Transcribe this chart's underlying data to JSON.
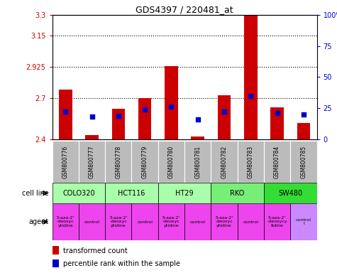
{
  "title": "GDS4397 / 220481_at",
  "samples": [
    "GSM800776",
    "GSM800777",
    "GSM800778",
    "GSM800779",
    "GSM800780",
    "GSM800781",
    "GSM800782",
    "GSM800783",
    "GSM800784",
    "GSM800785"
  ],
  "red_values": [
    2.76,
    2.43,
    2.62,
    2.7,
    2.93,
    2.42,
    2.72,
    3.3,
    2.63,
    2.52
  ],
  "blue_pct": [
    22,
    18,
    19,
    24,
    26,
    16,
    22,
    35,
    21,
    20
  ],
  "ylim_left": [
    2.4,
    3.3
  ],
  "ylim_right": [
    0,
    100
  ],
  "yticks_left": [
    2.4,
    2.7,
    2.925,
    3.15,
    3.3
  ],
  "yticks_right": [
    0,
    25,
    50,
    75,
    100
  ],
  "ytick_labels_left": [
    "2.4",
    "2.7",
    "2.925",
    "3.15",
    "3.3"
  ],
  "ytick_labels_right": [
    "0",
    "25",
    "50",
    "75",
    "100%"
  ],
  "hlines": [
    2.7,
    2.925,
    3.15
  ],
  "cell_lines": [
    {
      "label": "COLO320",
      "start": 0,
      "end": 2,
      "color": "#aaffaa"
    },
    {
      "label": "HCT116",
      "start": 2,
      "end": 4,
      "color": "#aaffaa"
    },
    {
      "label": "HT29",
      "start": 4,
      "end": 6,
      "color": "#aaffaa"
    },
    {
      "label": "RKO",
      "start": 6,
      "end": 8,
      "color": "#77ee77"
    },
    {
      "label": "SW480",
      "start": 8,
      "end": 10,
      "color": "#33dd33"
    }
  ],
  "agents": [
    {
      "label": "5-aza-2'\n-deoxyc\nytidine",
      "start": 0,
      "end": 1,
      "color": "#ee44ee"
    },
    {
      "label": "control",
      "start": 1,
      "end": 2,
      "color": "#ee44ee"
    },
    {
      "label": "5-aza-2'\n-deoxyc\nytidine",
      "start": 2,
      "end": 3,
      "color": "#ee44ee"
    },
    {
      "label": "control",
      "start": 3,
      "end": 4,
      "color": "#ee44ee"
    },
    {
      "label": "5-aza-2'\n-deoxyc\nytidine",
      "start": 4,
      "end": 5,
      "color": "#ee44ee"
    },
    {
      "label": "control",
      "start": 5,
      "end": 6,
      "color": "#ee44ee"
    },
    {
      "label": "5-aza-2'\n-deoxyc\nytidine",
      "start": 6,
      "end": 7,
      "color": "#ee44ee"
    },
    {
      "label": "control",
      "start": 7,
      "end": 8,
      "color": "#ee44ee"
    },
    {
      "label": "5-aza-2'\n-deoxycy\ntidine",
      "start": 8,
      "end": 9,
      "color": "#ee44ee"
    },
    {
      "label": "control\nl",
      "start": 9,
      "end": 10,
      "color": "#cc88ff"
    }
  ],
  "bar_bottom": 2.4,
  "bar_color": "#cc0000",
  "blue_marker_color": "#0000cc",
  "sample_bg": "#bbbbbb",
  "left_label_color": "#cc0000",
  "right_label_color": "#0000cc",
  "fig_w": 4.75,
  "fig_h": 3.84,
  "dpi": 100
}
